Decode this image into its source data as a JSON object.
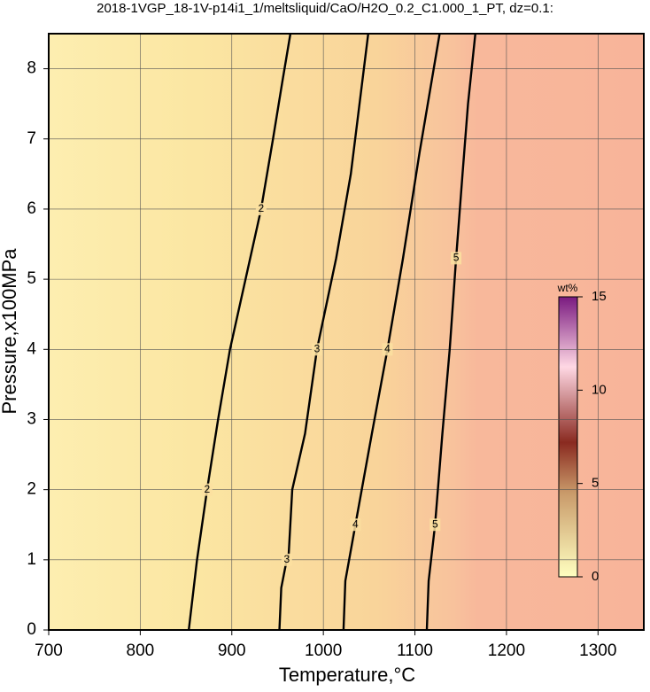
{
  "chart_data": {
    "type": "contour",
    "title": "2018-1VGP_18-1V-p14i1_1/meltsliquid/CaO/H2O_0.2_C1.000_1_PT, dz=0.1:",
    "xlabel": "Temperature,°C",
    "ylabel": "Pressure,x100MPa",
    "xlim": [
      700,
      1350
    ],
    "xticks": [
      700,
      800,
      900,
      1000,
      1100,
      1200,
      1300
    ],
    "ylim": [
      0,
      8.5
    ],
    "yticks": [
      0,
      1,
      2,
      3,
      4,
      5,
      6,
      7,
      8
    ],
    "grid": true,
    "color": "#000000",
    "contours": [
      {
        "level": 2,
        "x": [
          853,
          862,
          873,
          885,
          898,
          915,
          932,
          945,
          955,
          964
        ],
        "y": [
          0,
          1,
          2,
          3,
          4,
          5,
          6,
          7,
          7.8,
          8.5
        ]
      },
      {
        "level": 3,
        "x": [
          952,
          954,
          960,
          962,
          966,
          980,
          993,
          1014,
          1030,
          1049
        ],
        "y": [
          0,
          0.6,
          1.0,
          1.05,
          2,
          2.8,
          4,
          5.3,
          6.5,
          8.5
        ]
      },
      {
        "level": 4,
        "x": [
          1022,
          1024,
          1035,
          1053,
          1070,
          1087,
          1105,
          1127
        ],
        "y": [
          0,
          0.7,
          1.5,
          2.8,
          4,
          5.3,
          6.8,
          8.5
        ]
      },
      {
        "level": 5,
        "x": [
          1113,
          1115,
          1122,
          1130,
          1138,
          1145,
          1152,
          1158,
          1166
        ],
        "y": [
          0,
          0.7,
          1.5,
          2.8,
          4,
          5.3,
          6.5,
          7.5,
          8.5
        ]
      }
    ],
    "colorbar": {
      "label": "wt%",
      "lim": [
        0,
        15
      ],
      "ticks": [
        0,
        5,
        10,
        15
      ]
    }
  }
}
